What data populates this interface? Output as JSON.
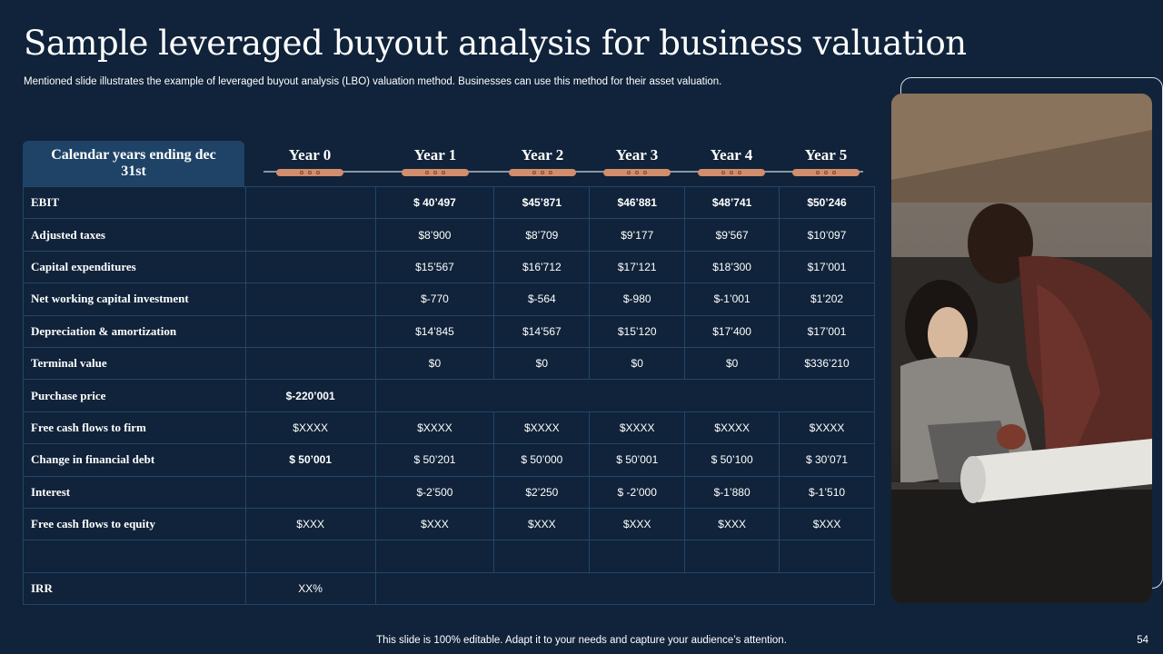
{
  "title": "Sample leveraged buyout analysis for business valuation",
  "subtitle": "Mentioned slide illustrates the example of leveraged buyout analysis (LBO) valuation method. Businesses can use this method for their asset valuation.",
  "table": {
    "header_label": "Calendar years ending dec 31st",
    "years": [
      "Year 0",
      "Year 1",
      "Year 2",
      "Year 3",
      "Year 4",
      "Year 5"
    ],
    "rows": [
      {
        "label": "EBIT",
        "values": [
          "",
          "$ 40’497",
          "$45’871",
          "$46’881",
          "$48’741",
          "$50’246"
        ]
      },
      {
        "label": "Adjusted taxes",
        "values": [
          "",
          "$8’900",
          "$8’709",
          "$9’177",
          "$9’567",
          "$10’097"
        ]
      },
      {
        "label": "Capital expenditures",
        "values": [
          "",
          "$15’567",
          "$16’712",
          "$17’121",
          "$18’300",
          "$17’001"
        ]
      },
      {
        "label": "Net working capital investment",
        "values": [
          "",
          "$-770",
          "$-564",
          "$-980",
          "$-1’001",
          "$1’202"
        ]
      },
      {
        "label": "Depreciation & amortization",
        "values": [
          "",
          "$14’845",
          "$14’567",
          "$15’120",
          "$17’400",
          "$17’001"
        ]
      },
      {
        "label": "Terminal value",
        "values": [
          "",
          "$0",
          "$0",
          "$0",
          "$0",
          "$336’210"
        ]
      },
      {
        "label": "Purchase price",
        "year0": "$-220’001"
      },
      {
        "label": "Free cash flows to firm",
        "values": [
          "$XXXX",
          "$XXXX",
          "$XXXX",
          "$XXXX",
          "$XXXX",
          "$XXXX"
        ]
      },
      {
        "label": "Change in financial debt",
        "values": [
          "$ 50’001",
          "$ 50’201",
          "$ 50’000",
          "$ 50’001",
          "$ 50’100",
          "$ 30’071"
        ]
      },
      {
        "label": "Interest",
        "values": [
          "",
          "$-2’500",
          "$2’250",
          "$ -2’000",
          "$-1’880",
          "$-1’510"
        ]
      },
      {
        "label": "Free cash flows to equity",
        "values": [
          "$XXX",
          "$XXX",
          "$XXX",
          "$XXX",
          "$XXX",
          "$XXX"
        ]
      },
      {
        "label": "",
        "values": [
          "",
          "",
          "",
          "",
          "",
          ""
        ]
      },
      {
        "label": "IRR",
        "year0": "XX%"
      }
    ]
  },
  "photo": {
    "description_icon": "photo-icon"
  },
  "footer": "This slide is 100% editable. Adapt it to your needs and capture your audience’s attention.",
  "page_number": "54",
  "colors": {
    "background": "#10233a",
    "accent": "#d28d6c",
    "header_box": "#1e4366",
    "grid": "#23466a"
  }
}
